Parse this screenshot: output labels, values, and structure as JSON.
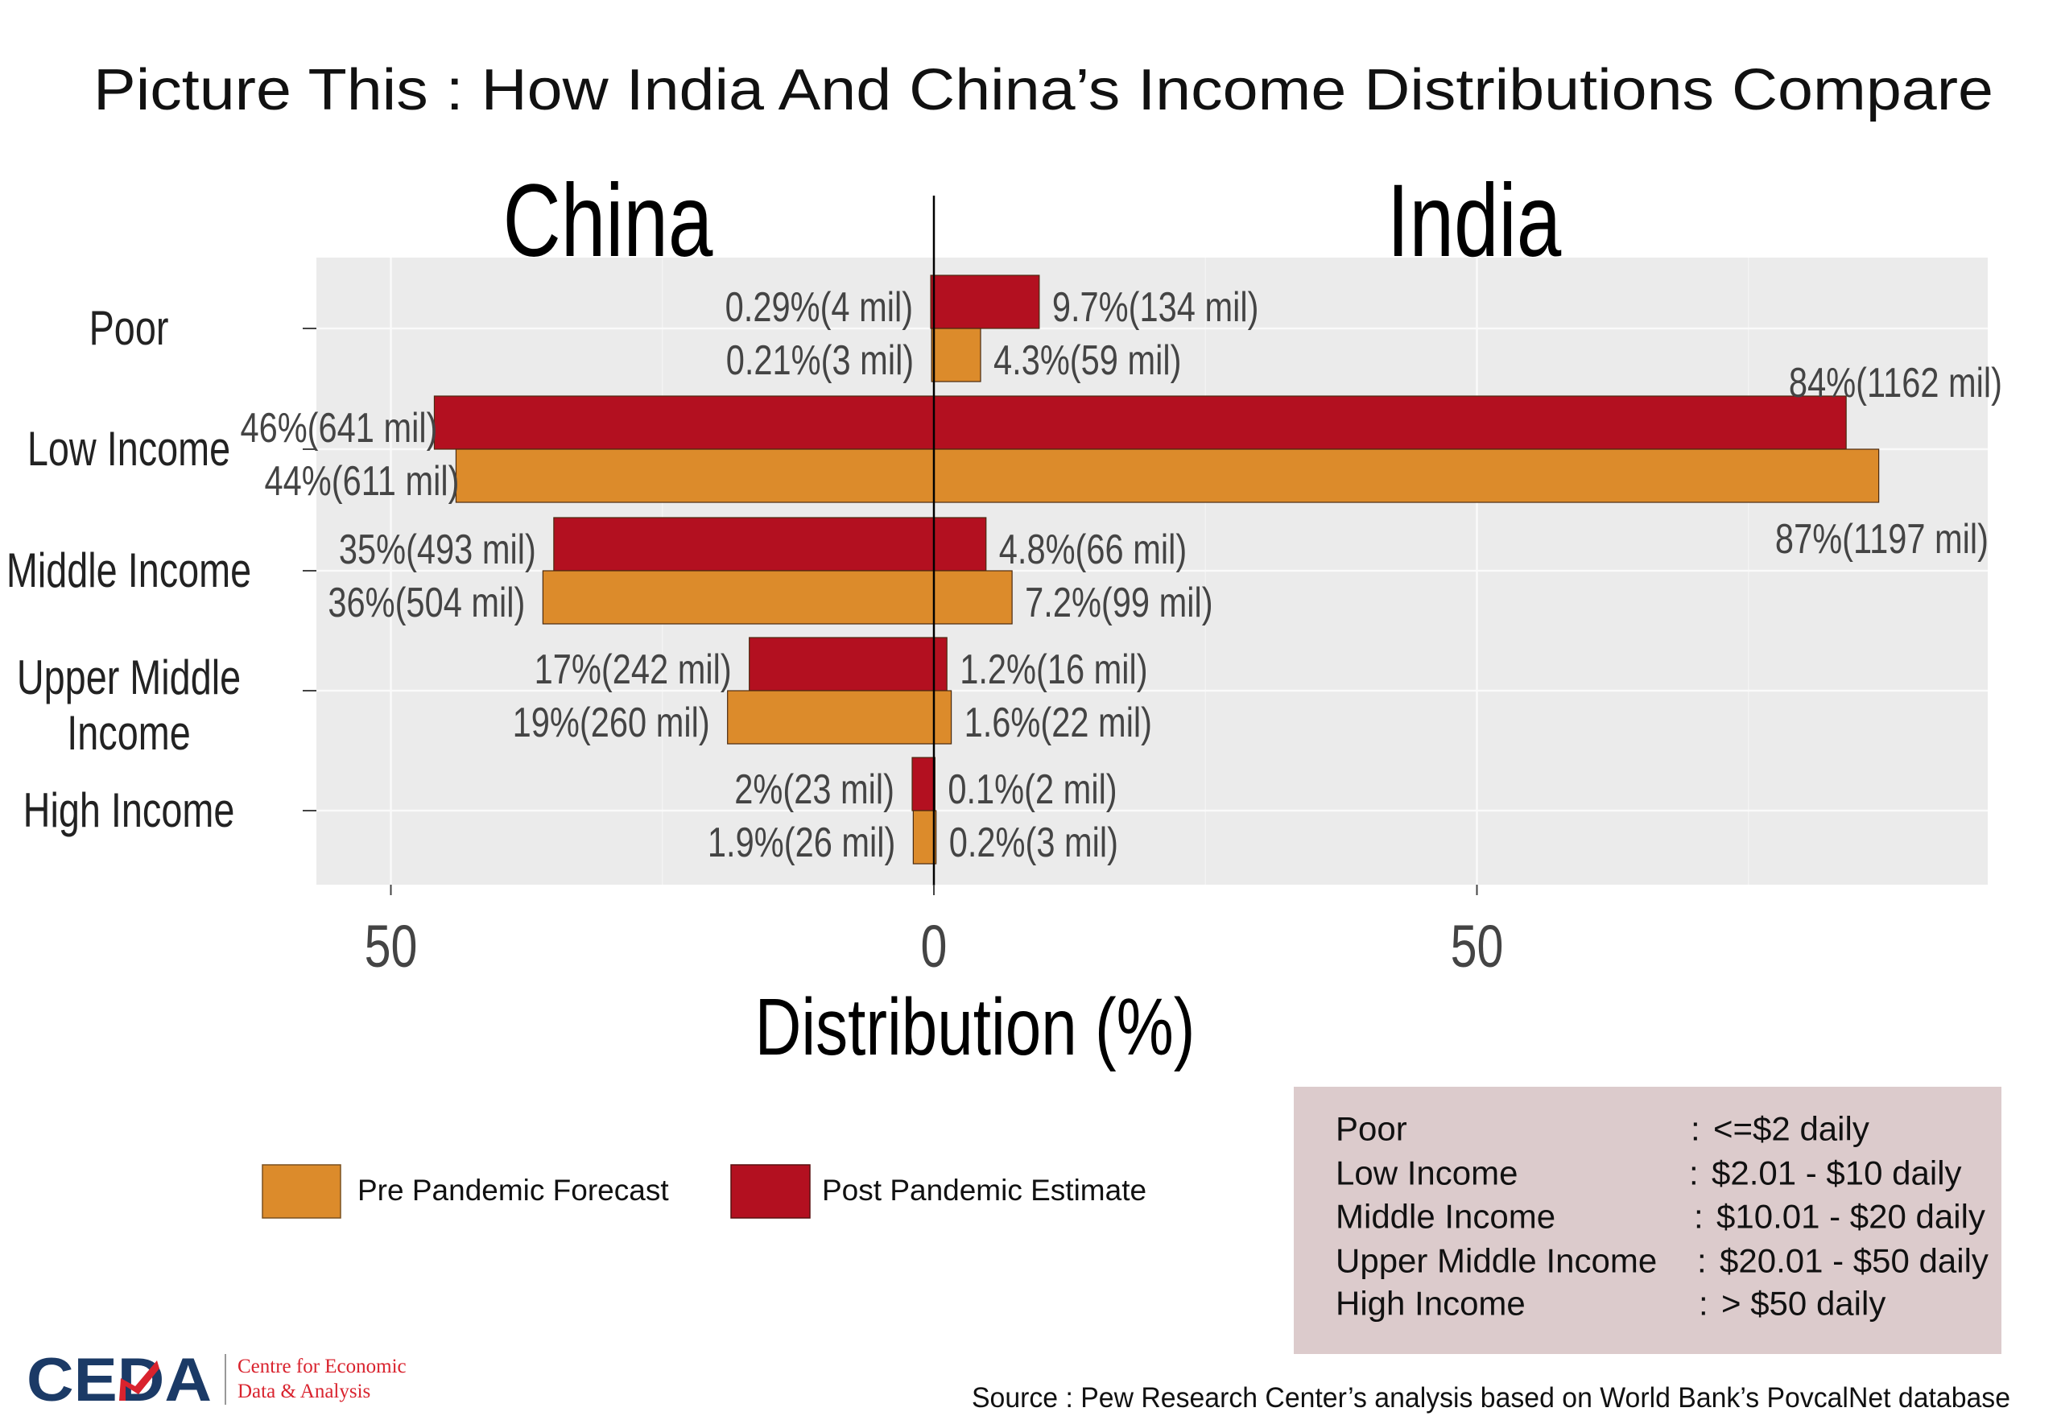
{
  "title": "Picture This : How India And China’s Income Distributions Compare",
  "colors": {
    "pre": "#dc8b2b",
    "post": "#b31020",
    "panel": "#ebebeb",
    "definitions_bg": "#dccbcc",
    "logo_navy": "#1b3a66",
    "logo_red": "#d9232e"
  },
  "chart_data": {
    "type": "bar",
    "orientation": "horizontal-diverging",
    "title": "Picture This : How India And China’s Income Distributions Compare",
    "left_panel_title": "China",
    "right_panel_title": "India",
    "xlabel": "Distribution (%)",
    "ylabel": "",
    "xlim": [
      -56,
      98
    ],
    "x_ticks": [
      {
        "value": -50,
        "label": "50"
      },
      {
        "value": 0,
        "label": "0"
      },
      {
        "value": 50,
        "label": "50"
      }
    ],
    "grid": true,
    "categories": [
      "Poor",
      "Low Income",
      "Middle Income",
      "Upper Middle Income",
      "High Income"
    ],
    "category_lines": [
      [
        "Poor"
      ],
      [
        "Low Income"
      ],
      [
        "Middle Income"
      ],
      [
        "Upper Middle",
        "Income"
      ],
      [
        "High Income"
      ]
    ],
    "series": [
      {
        "name": "Post Pandemic Estimate",
        "key": "post",
        "china": [
          0.29,
          46,
          35,
          17,
          2
        ],
        "india": [
          9.7,
          84,
          4.8,
          1.2,
          0.1
        ],
        "china_labels": [
          "0.29%(4 mil)",
          "46%(641 mil)",
          "35%(493 mil)",
          "17%(242 mil)",
          "2%(23 mil)"
        ],
        "india_labels": [
          "9.7%(134 mil)",
          "84%(1162 mil)",
          "4.8%(66 mil)",
          "1.2%(16 mil)",
          "0.1%(2 mil)"
        ]
      },
      {
        "name": "Pre Pandemic Forecast",
        "key": "pre",
        "china": [
          0.21,
          44,
          36,
          19,
          1.9
        ],
        "india": [
          4.3,
          87,
          7.2,
          1.6,
          0.2
        ],
        "china_labels": [
          "0.21%(3 mil)",
          "44%(611 mil)",
          "36%(504 mil)",
          "19%(260 mil)",
          "1.9%(26 mil)"
        ],
        "india_labels": [
          "4.3%(59 mil)",
          "87%(1197 mil)",
          "7.2%(99 mil)",
          "1.6%(22 mil)",
          "0.2%(3 mil)"
        ]
      }
    ],
    "legend": {
      "placement": "bottom-left",
      "entries": [
        "Pre Pandemic Forecast",
        "Post Pandemic Estimate"
      ]
    }
  },
  "definitions": [
    {
      "label": "Poor",
      "sep": ":",
      "value": "<=$2 daily"
    },
    {
      "label": "Low Income",
      "sep": ":",
      "value": "$2.01 - $10 daily"
    },
    {
      "label": "Middle  Income",
      "sep": ":",
      "value": "$10.01 - $20 daily"
    },
    {
      "label": "Upper Middle  Income",
      "sep": ":",
      "value": "$20.01 - $50 daily"
    },
    {
      "label": "High Income",
      "sep": ":",
      "value": "> $50 daily"
    }
  ],
  "logo": {
    "mark": "CEDA",
    "line1": "Centre for Economic",
    "line2": "Data & Analysis"
  },
  "source": "Source : Pew Research Center’s analysis based on World Bank’s PovcalNet database"
}
